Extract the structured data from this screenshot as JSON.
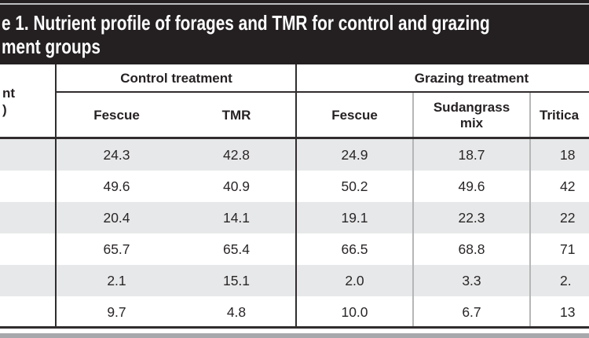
{
  "title": {
    "line1": "e 1. Nutrient profile of forages and TMR for control and grazing",
    "line2": "ment groups"
  },
  "row_header": {
    "line1": "nt",
    "line2": ")"
  },
  "header": {
    "control_group": "Control treatment",
    "grazing_group": "Grazing treatment",
    "columns": [
      "Fescue",
      "TMR",
      "Fescue",
      "Sudangrass mix",
      "Tritica"
    ]
  },
  "table": {
    "rows": [
      {
        "cells": [
          "24.3",
          "42.8",
          "24.9",
          "18.7",
          "18"
        ]
      },
      {
        "cells": [
          "49.6",
          "40.9",
          "50.2",
          "49.6",
          "42"
        ]
      },
      {
        "cells": [
          "20.4",
          "14.1",
          "19.1",
          "22.3",
          "22"
        ]
      },
      {
        "cells": [
          "65.7",
          "65.4",
          "66.5",
          "68.8",
          "71"
        ]
      },
      {
        "cells": [
          "2.1",
          "15.1",
          "2.0",
          "3.3",
          "2."
        ]
      },
      {
        "cells": [
          "9.7",
          "4.8",
          "10.0",
          "6.7",
          "13"
        ]
      }
    ]
  },
  "colors": {
    "title_bar": "#242021",
    "row_shade": "#e7e8e9",
    "line_strong": "#312d2e",
    "line_faint": "#b4b6b8",
    "bottom_band": "#a6a8ab"
  }
}
